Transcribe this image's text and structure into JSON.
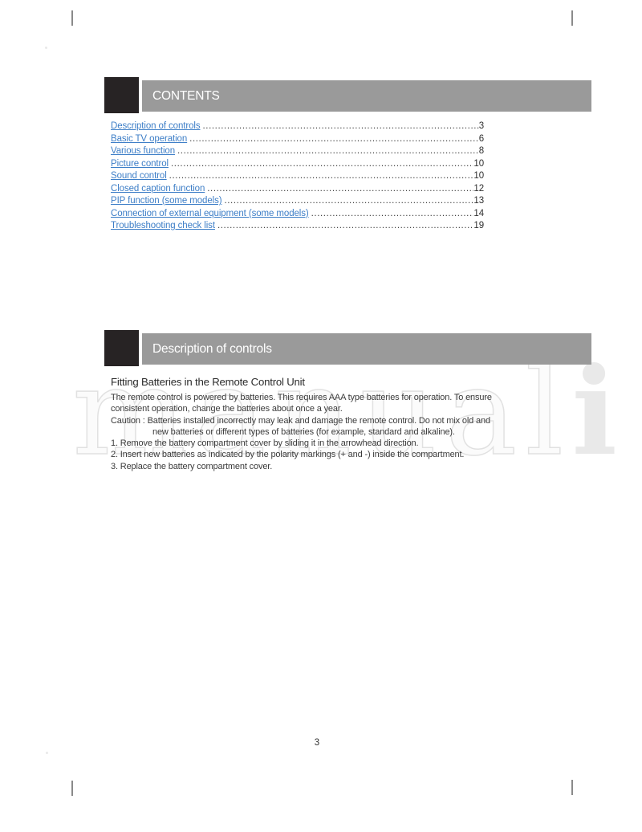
{
  "header_bars": {
    "contents": "CONTENTS",
    "description": "Description of controls"
  },
  "toc": {
    "entries": [
      {
        "label": "Description of controls",
        "page": "3"
      },
      {
        "label": "Basic TV operation",
        "page": "6"
      },
      {
        "label": "Various function",
        "page": "8"
      },
      {
        "label": "Picture control",
        "page": "10"
      },
      {
        "label": "Sound control",
        "page": "10"
      },
      {
        "label": "Closed caption function",
        "page": "12"
      },
      {
        "label": "PIP function (some models)",
        "page": "13"
      },
      {
        "label": "Connection of external equipment (some models)",
        "page": "14"
      },
      {
        "label": "Troubleshooting check list",
        "page": "19"
      }
    ]
  },
  "battery": {
    "heading": "Fitting Batteries in the Remote Control Unit",
    "para_line1": "The remote control is powered by batteries. This requires AAA type batteries for operation. To ensure",
    "para_line2": "consistent operation, change the batteries about once a year.",
    "caution_line1": "Caution : Batteries installed incorrectly may leak and damage the remote control. Do not mix old and",
    "caution_line2": "new batteries or different types of batteries (for example, standard and alkaline).",
    "steps": [
      "1. Remove the battery compartment cover by sliding it in the arrowhead direction.",
      "2. Insert new batteries as indicated by the polarity markings (+ and -) inside the compartment.",
      "3. Replace the battery compartment cover."
    ]
  },
  "watermark": {
    "outline": "manual",
    "solid": "i"
  },
  "page_number": "3",
  "colors": {
    "link_blue": "#3d7ec7",
    "bar_gray": "#9a9a9a",
    "bar_black": "#272324"
  }
}
